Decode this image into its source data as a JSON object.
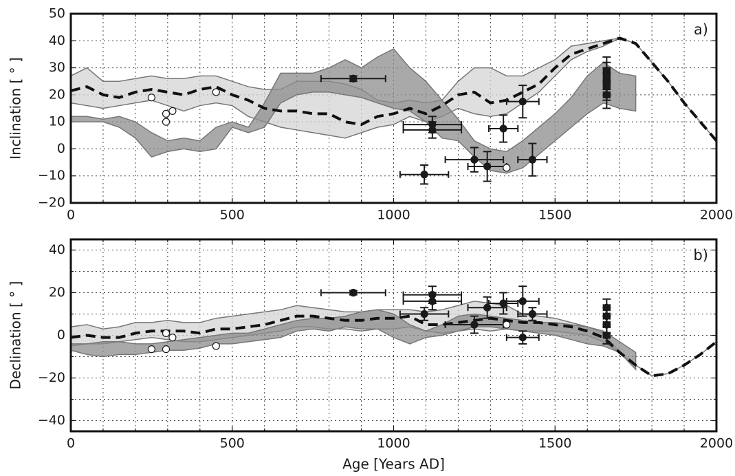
{
  "chart_data": [
    {
      "type": "line",
      "label": "a)",
      "ylabel": "Inclination [ ° ]",
      "xlim": [
        0,
        2000
      ],
      "xticks": [
        0,
        500,
        1000,
        1500,
        2000
      ],
      "xminor": [
        100,
        200,
        300,
        400,
        600,
        700,
        800,
        900,
        1100,
        1200,
        1300,
        1400,
        1600,
        1700,
        1800,
        1900
      ],
      "ylim": [
        -20,
        50
      ],
      "yticks": [
        {
          "value": -20,
          "label": "−20"
        },
        {
          "value": -10,
          "label": "−10"
        },
        0,
        10,
        20,
        30,
        40,
        50
      ],
      "yminor": [],
      "grid": true,
      "bands": [
        {
          "color": "#d4d4d4",
          "x": [
            0,
            50,
            100,
            150,
            200,
            250,
            300,
            350,
            400,
            450,
            500,
            550,
            600,
            650,
            700,
            750,
            800,
            850,
            900,
            950,
            1000,
            1050,
            1100,
            1150,
            1200,
            1250,
            1300,
            1350,
            1400,
            1450,
            1500,
            1550,
            1600,
            1650,
            1700,
            1750,
            1800,
            1850,
            1900,
            1950,
            2000
          ],
          "upper": [
            27,
            30,
            25,
            25,
            26,
            27,
            26,
            26,
            27,
            27,
            25,
            23,
            22,
            22,
            25,
            25,
            25,
            24,
            22,
            18,
            17,
            18,
            17,
            18,
            25,
            30,
            30,
            27,
            27,
            30,
            33,
            38,
            39,
            40,
            41,
            39,
            32,
            25,
            17,
            10,
            3
          ],
          "lower": [
            17,
            16,
            15,
            16,
            17,
            18,
            16,
            14,
            16,
            17,
            16,
            12,
            10,
            8,
            7,
            6,
            5,
            4,
            6,
            8,
            9,
            12,
            10,
            12,
            15,
            13,
            12,
            13,
            17,
            21,
            27,
            33,
            36,
            38,
            41,
            39,
            32,
            25,
            17,
            10,
            3
          ]
        },
        {
          "color": "#8c8c8c",
          "x": [
            0,
            50,
            100,
            150,
            200,
            250,
            300,
            350,
            400,
            450,
            500,
            550,
            600,
            650,
            700,
            750,
            800,
            850,
            900,
            950,
            1000,
            1050,
            1100,
            1150,
            1200,
            1250,
            1300,
            1350,
            1400,
            1450,
            1500,
            1550,
            1600,
            1650,
            1700,
            1750
          ],
          "upper": [
            12,
            12,
            11,
            12,
            10,
            6,
            3,
            4,
            3,
            8,
            10,
            8,
            17,
            28,
            28,
            28,
            30,
            33,
            30,
            34,
            37,
            30,
            25,
            18,
            11,
            3,
            0,
            -1,
            3,
            8,
            13,
            19,
            27,
            32,
            28,
            27
          ],
          "lower": [
            10,
            10,
            10,
            8,
            4,
            -3,
            -1,
            0,
            -1,
            0,
            8,
            6,
            8,
            17,
            20,
            21,
            21,
            20,
            19,
            17,
            15,
            14,
            10,
            4,
            3,
            -3,
            -8,
            -9,
            -7,
            -2,
            3,
            8,
            13,
            17,
            15,
            14
          ]
        }
      ],
      "line": {
        "color": "#111111",
        "x": [
          0,
          50,
          100,
          150,
          200,
          250,
          300,
          350,
          400,
          450,
          500,
          550,
          600,
          650,
          700,
          750,
          800,
          850,
          900,
          950,
          1000,
          1050,
          1100,
          1150,
          1200,
          1250,
          1300,
          1350,
          1400,
          1450,
          1500,
          1550,
          1600,
          1650,
          1700,
          1750,
          1800,
          1850,
          1900,
          1950,
          2000
        ],
        "values": [
          21.5,
          23,
          20,
          19,
          21,
          22,
          21,
          20,
          22,
          23,
          20,
          18,
          15,
          14,
          14,
          13,
          13,
          10,
          9,
          12,
          13,
          15,
          13,
          16,
          20,
          21,
          17,
          18,
          21,
          24,
          30,
          35,
          37,
          39,
          41,
          39,
          32,
          25,
          17,
          10,
          3
        ]
      },
      "points": [
        {
          "color": "#1a1a1a",
          "fill": "#1a1a1a",
          "x": [
            875,
            1095,
            1120,
            1120,
            1250,
            1290,
            1340,
            1400,
            1430,
            1660,
            1660,
            1660,
            1660,
            1660
          ],
          "values": [
            26,
            -9.5,
            9,
            7,
            -4,
            -6.5,
            7.5,
            17.5,
            -4,
            20,
            23,
            25,
            27,
            29
          ],
          "xerr": [
            100,
            75,
            90,
            90,
            90,
            60,
            45,
            50,
            45,
            10,
            10,
            10,
            10,
            10
          ],
          "yerr": [
            1,
            3.5,
            3,
            3,
            4.5,
            5.5,
            5,
            6,
            6,
            5,
            5,
            5,
            5,
            5
          ]
        },
        {
          "color": "#1a1a1a",
          "fill": "#ffffff",
          "x": [
            250,
            295,
            295,
            315,
            450,
            1350
          ],
          "values": [
            19,
            13,
            10,
            14,
            21,
            -7
          ]
        }
      ]
    },
    {
      "type": "line",
      "label": "b)",
      "ylabel": "Declination [ ° ]",
      "xlabel": "Age [Years AD]",
      "xlim": [
        0,
        2000
      ],
      "xticks": [
        0,
        500,
        1000,
        1500,
        2000
      ],
      "xminor": [
        100,
        200,
        300,
        400,
        600,
        700,
        800,
        900,
        1100,
        1200,
        1300,
        1400,
        1600,
        1700,
        1800,
        1900
      ],
      "ylim": [
        -45,
        45
      ],
      "yticks": [
        {
          "value": -40,
          "label": "−40"
        },
        {
          "value": -20,
          "label": "−20"
        },
        0,
        20,
        40
      ],
      "yminor": [
        -30,
        -10,
        10,
        30
      ],
      "grid": true,
      "bands": [
        {
          "color": "#d4d4d4",
          "x": [
            0,
            50,
            100,
            150,
            200,
            250,
            300,
            350,
            400,
            450,
            500,
            550,
            600,
            650,
            700,
            750,
            800,
            850,
            900,
            950,
            1000,
            1050,
            1100,
            1150,
            1200,
            1250,
            1300,
            1350,
            1400,
            1450,
            1500,
            1550,
            1600,
            1650,
            1700,
            1750,
            1800,
            1850,
            1900,
            1950,
            2000
          ],
          "upper": [
            4,
            5,
            3,
            4,
            6,
            6,
            7,
            6,
            6,
            8,
            9,
            10,
            11,
            12,
            14,
            13,
            12,
            11,
            11,
            12,
            12,
            12,
            11,
            12,
            14,
            16,
            15,
            14,
            10,
            9,
            8,
            6,
            4,
            1,
            -8,
            -14,
            -19,
            -18,
            -14,
            -9,
            -3
          ],
          "lower": [
            -5,
            -4,
            -4,
            -3,
            -2,
            -1,
            -2,
            -3,
            -3,
            -2,
            -1,
            0,
            1,
            2,
            4,
            4,
            3,
            3,
            2,
            3,
            3,
            4,
            2,
            1,
            2,
            3,
            2,
            3,
            2,
            2,
            2,
            1,
            0,
            -3,
            -8,
            -14,
            -19,
            -18,
            -14,
            -9,
            -3
          ]
        },
        {
          "color": "#8c8c8c",
          "x": [
            0,
            50,
            100,
            150,
            200,
            250,
            300,
            350,
            400,
            450,
            500,
            550,
            600,
            650,
            700,
            750,
            800,
            850,
            900,
            950,
            1000,
            1050,
            1100,
            1150,
            1200,
            1250,
            1300,
            1350,
            1400,
            1450,
            1500,
            1550,
            1600,
            1650,
            1700,
            1750
          ],
          "upper": [
            -4,
            -4,
            -3,
            -3,
            -4,
            -4,
            -3,
            -2,
            -1,
            0,
            1,
            1,
            3,
            5,
            7,
            8,
            8,
            9,
            11,
            12,
            10,
            5,
            2,
            5,
            9,
            10,
            9,
            8,
            7,
            6,
            6,
            5,
            4,
            2,
            -3,
            -8
          ],
          "lower": [
            -7,
            -9,
            -10,
            -9,
            -9,
            -8,
            -7,
            -7,
            -6,
            -4,
            -4,
            -3,
            -2,
            -1,
            2,
            3,
            2,
            4,
            3,
            3,
            -1,
            -4,
            -1,
            0,
            2,
            4,
            4,
            3,
            2,
            1,
            0,
            -2,
            -4,
            -5,
            -8,
            -16
          ]
        }
      ],
      "line": {
        "color": "#111111",
        "x": [
          0,
          50,
          100,
          150,
          200,
          250,
          300,
          350,
          400,
          450,
          500,
          550,
          600,
          650,
          700,
          750,
          800,
          850,
          900,
          950,
          1000,
          1050,
          1100,
          1150,
          1200,
          1250,
          1300,
          1350,
          1400,
          1450,
          1500,
          1550,
          1600,
          1650,
          1700,
          1750,
          1800,
          1850,
          1900,
          1950,
          2000
        ],
        "values": [
          -1,
          0,
          -1,
          -1,
          1,
          2,
          2,
          2,
          1,
          3,
          3,
          4,
          5,
          7,
          9,
          9,
          8,
          7,
          7,
          8,
          8,
          9,
          5,
          5,
          6,
          7,
          8,
          7,
          6,
          6,
          5,
          4,
          2,
          -1,
          -8,
          -14,
          -19,
          -18,
          -14,
          -9,
          -3
        ]
      },
      "points": [
        {
          "color": "#1a1a1a",
          "fill": "#1a1a1a",
          "x": [
            875,
            1095,
            1120,
            1120,
            1250,
            1290,
            1340,
            1400,
            1400,
            1430,
            1660,
            1660,
            1660,
            1660
          ],
          "values": [
            20,
            10,
            19,
            16,
            5,
            13,
            15,
            16,
            -1,
            10,
            0,
            5,
            9,
            13
          ],
          "xerr": [
            100,
            75,
            90,
            90,
            90,
            60,
            45,
            50,
            50,
            45,
            10,
            10,
            10,
            10
          ],
          "yerr": [
            1,
            3,
            4,
            4,
            4,
            5,
            5,
            7,
            3,
            3,
            4,
            4,
            4,
            4
          ]
        },
        {
          "color": "#1a1a1a",
          "fill": "#ffffff",
          "x": [
            250,
            295,
            295,
            315,
            450,
            1350
          ],
          "values": [
            -6.5,
            -6.5,
            1,
            -1,
            -5,
            5
          ]
        }
      ]
    }
  ]
}
